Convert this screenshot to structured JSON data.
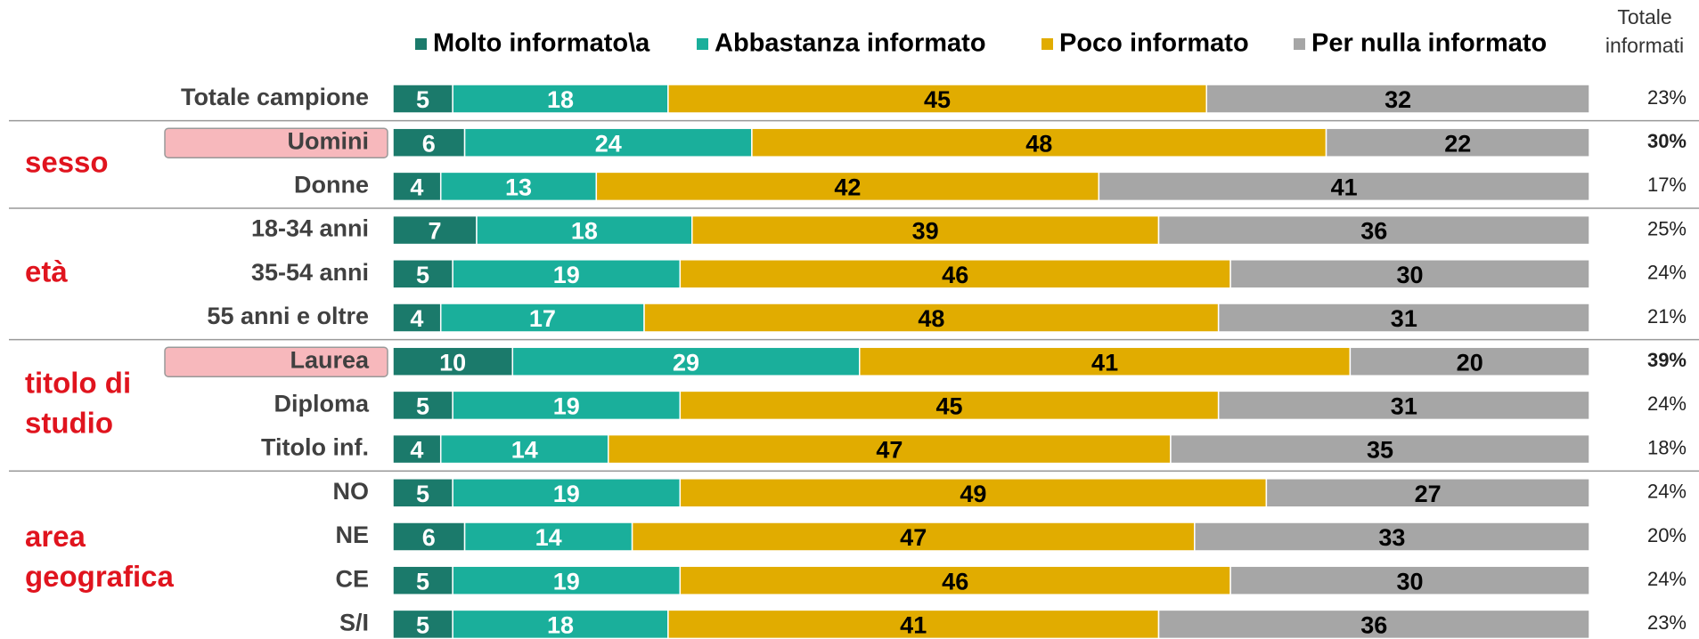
{
  "chart_data": {
    "type": "stacked_barh",
    "categories": [
      "Totale campione",
      "Uomini",
      "Donne",
      "18-34 anni",
      "35-54 anni",
      "55 anni e oltre",
      "Laurea",
      "Diploma",
      "Titolo inf.",
      "NO",
      "NE",
      "CE",
      "S/I"
    ],
    "series": [
      {
        "name": "Molto informato\\a",
        "color": "#1b7a6b",
        "label_color": "#ffffff",
        "values": [
          5,
          6,
          4,
          7,
          5,
          4,
          10,
          5,
          4,
          5,
          6,
          5,
          5
        ]
      },
      {
        "name": "Abbastanza informato",
        "color": "#1aaf9b",
        "label_color": "#ffffff",
        "values": [
          18,
          24,
          13,
          18,
          19,
          17,
          29,
          19,
          14,
          19,
          14,
          19,
          18
        ]
      },
      {
        "name": "Poco informato",
        "color": "#e1ac00",
        "label_color": "#000000",
        "values": [
          45,
          48,
          42,
          39,
          46,
          48,
          41,
          45,
          47,
          49,
          47,
          46,
          41
        ]
      },
      {
        "name": "Per nulla informato",
        "color": "#a6a6a6",
        "label_color": "#000000",
        "values": [
          32,
          22,
          41,
          36,
          30,
          31,
          20,
          31,
          35,
          27,
          33,
          30,
          36
        ]
      }
    ],
    "xlim": [
      0,
      100
    ],
    "totals_header": [
      "Totale",
      "informati"
    ],
    "totals": {
      "values": [
        23,
        30,
        17,
        25,
        24,
        21,
        39,
        24,
        18,
        24,
        20,
        24,
        23
      ],
      "value_labels": [
        "23%",
        "30%",
        "17%",
        "25%",
        "24%",
        "21%",
        "39%",
        "24%",
        "18%",
        "24%",
        "20%",
        "24%",
        "23%"
      ]
    },
    "highlight": [
      1,
      6
    ],
    "groups": [
      {
        "label": [
          "sesso"
        ],
        "rows": [
          1,
          2
        ]
      },
      {
        "label": [
          "età"
        ],
        "rows": [
          3,
          5
        ]
      },
      {
        "label": [
          "titolo di",
          "studio"
        ],
        "rows": [
          6,
          8
        ]
      },
      {
        "label": [
          "area",
          "geografica"
        ],
        "rows": [
          9,
          12
        ]
      }
    ]
  }
}
